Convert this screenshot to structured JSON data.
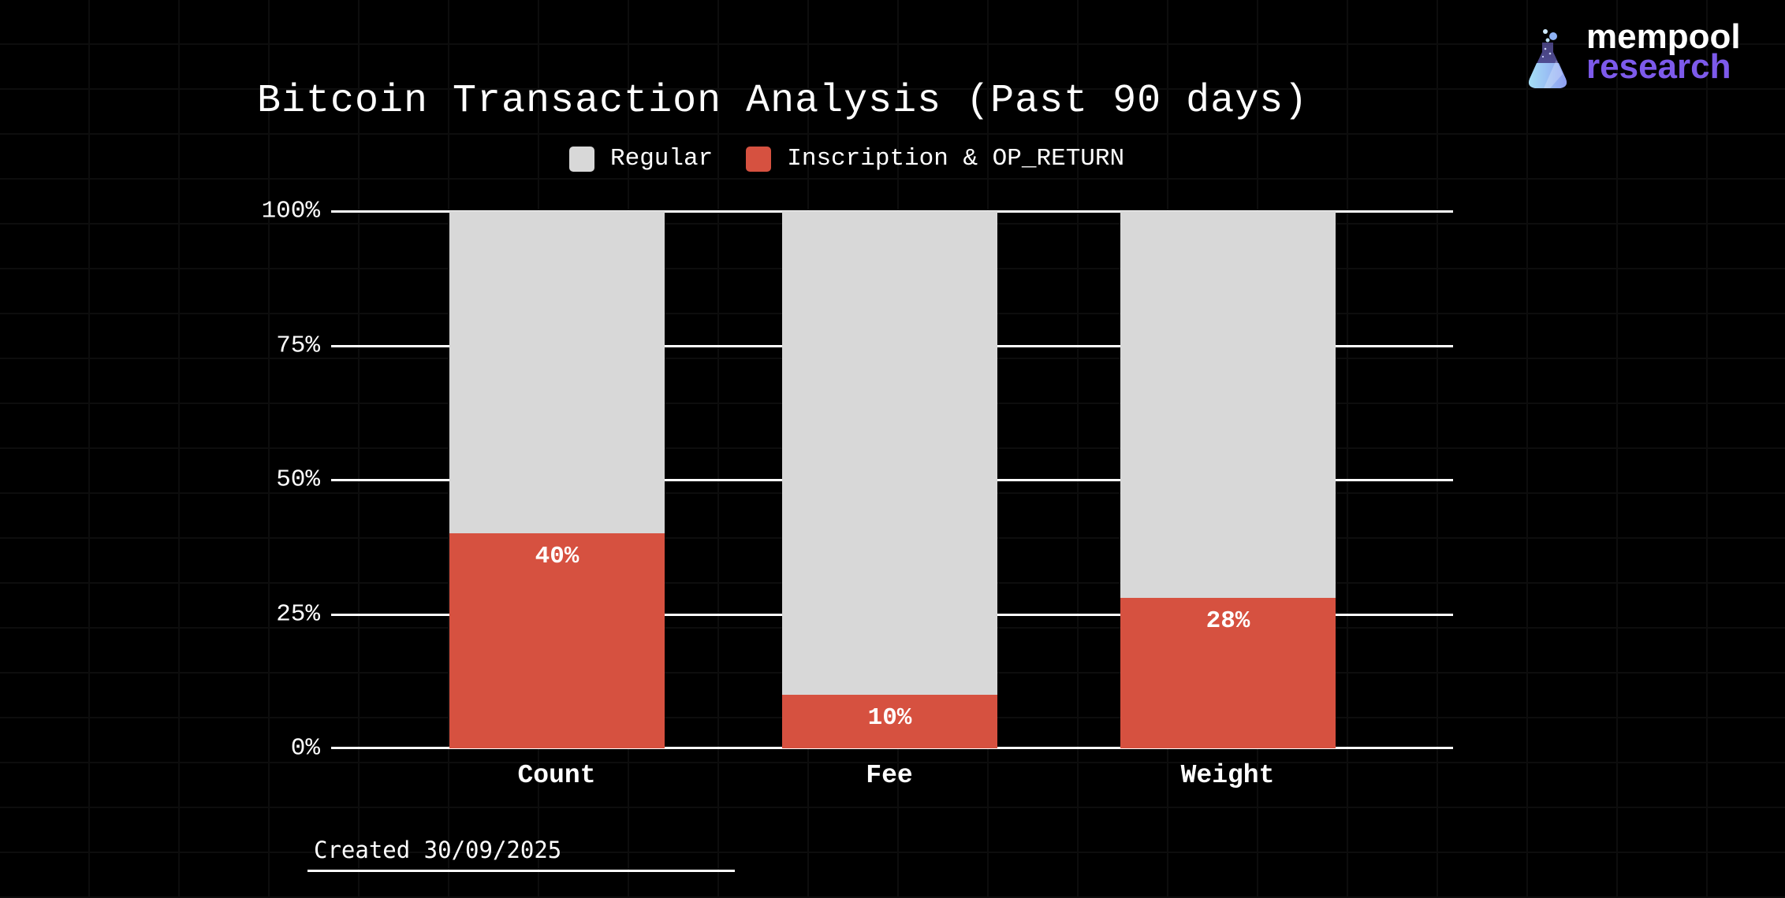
{
  "header": {
    "title": "Bitcoin Transaction Analysis (Past 90 days)"
  },
  "brand": {
    "line1": "mempool",
    "line2": "research",
    "flask_icon": "flask-icon",
    "accent_purple": "#7d5aeb"
  },
  "legend": {
    "items": [
      {
        "label": "Regular",
        "color": "#d8d8d8"
      },
      {
        "label": "Inscription & OP_RETURN",
        "color": "#d65140"
      }
    ]
  },
  "chart_data": {
    "type": "bar",
    "stacked": true,
    "title": "Bitcoin Transaction Analysis (Past 90 days)",
    "categories": [
      "Count",
      "Fee",
      "Weight"
    ],
    "series": [
      {
        "name": "Regular",
        "color": "#d8d8d8",
        "values": [
          60,
          90,
          72
        ]
      },
      {
        "name": "Inscription & OP_RETURN",
        "color": "#d65140",
        "values": [
          40,
          10,
          28
        ]
      }
    ],
    "value_labels": [
      "40%",
      "10%",
      "28%"
    ],
    "y_ticks": [
      "100%",
      "75%",
      "50%",
      "25%",
      "0%"
    ],
    "ylim": [
      0,
      100
    ],
    "xlabel": "",
    "ylabel": "",
    "grid": "horizontal-white-lines",
    "legend_position": "top-center",
    "background": "#000000"
  },
  "footer": {
    "created_label": "Created 30/09/2025"
  },
  "colors": {
    "background": "#000000",
    "background_grid_line": "#0d0d0d",
    "text": "#ffffff",
    "gridline": "#ffffff",
    "bar_regular": "#d8d8d8",
    "bar_inscription": "#d65140",
    "brand_purple": "#7d5aeb"
  }
}
